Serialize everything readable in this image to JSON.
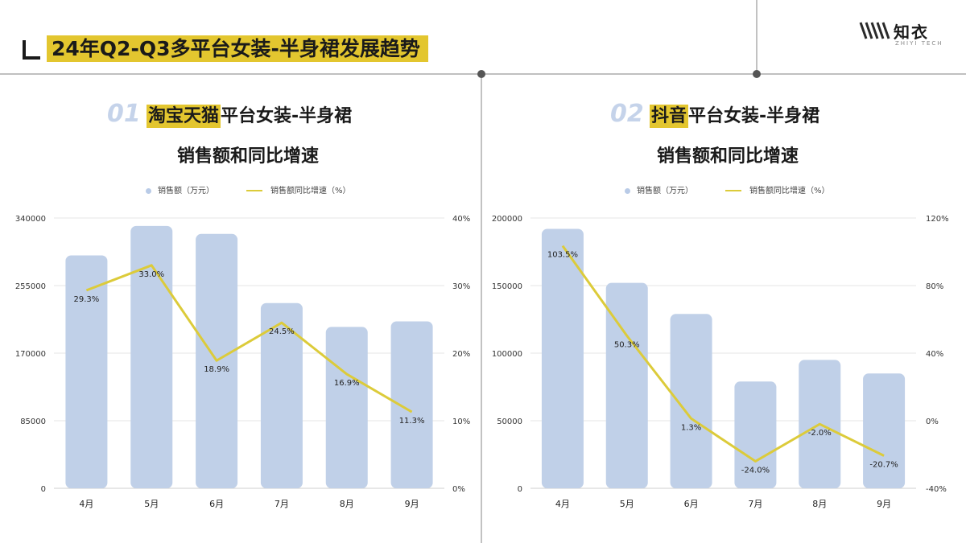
{
  "header": {
    "title": "24年Q2-Q3多平台女装-半身裙发展趋势"
  },
  "logo": {
    "text": "知衣",
    "subtext": "ZHIYI TECH"
  },
  "panels": [
    {
      "number": "01",
      "title_highlight": "淘宝天猫",
      "title_rest": "平台女装-半身裙",
      "subtitle": "销售额和同比增速"
    },
    {
      "number": "02",
      "title_highlight": "抖音",
      "title_rest": "平台女装-半身裙",
      "subtitle": "销售额和同比增速"
    }
  ],
  "colors": {
    "bar": "#c0d0e8",
    "line": "#dccb3a",
    "highlight": "#e3c62f",
    "number": "#c5d3ea"
  },
  "chart_data": [
    {
      "type": "bar",
      "categories": [
        "4月",
        "5月",
        "6月",
        "7月",
        "8月",
        "9月"
      ],
      "series": [
        {
          "name": "销售额（万元）",
          "type": "bar",
          "axis": "left",
          "values": [
            293000,
            330000,
            320000,
            233000,
            203000,
            210000
          ]
        },
        {
          "name": "销售额同比增速（%）",
          "type": "line",
          "axis": "right",
          "values": [
            29.3,
            33.0,
            18.9,
            24.5,
            16.9,
            11.3
          ],
          "labels": [
            "29.3%",
            "33.0%",
            "18.9%",
            "24.5%",
            "16.9%",
            "11.3%"
          ]
        }
      ],
      "y_left": {
        "ylim": [
          0,
          340000
        ],
        "ticks": [
          "0",
          "85000",
          "170000",
          "255000",
          "340000"
        ]
      },
      "y_right": {
        "ylim": [
          0,
          40
        ],
        "ticks": [
          "0%",
          "10%",
          "20%",
          "30%",
          "40%"
        ]
      },
      "legend": "top"
    },
    {
      "type": "bar",
      "categories": [
        "4月",
        "5月",
        "6月",
        "7月",
        "8月",
        "9月"
      ],
      "series": [
        {
          "name": "销售额（万元）",
          "type": "bar",
          "axis": "left",
          "values": [
            192000,
            152000,
            129000,
            79000,
            95000,
            85000
          ]
        },
        {
          "name": "销售额同比增速（%）",
          "type": "line",
          "axis": "right",
          "values": [
            103.5,
            50.3,
            1.3,
            -24.0,
            -2.0,
            -20.7
          ],
          "labels": [
            "103.5%",
            "50.3%",
            "1.3%",
            "-24.0%",
            "-2.0%",
            "-20.7%"
          ]
        }
      ],
      "y_left": {
        "ylim": [
          0,
          200000
        ],
        "ticks": [
          "0",
          "50000",
          "100000",
          "150000",
          "200000"
        ]
      },
      "y_right": {
        "ylim": [
          -40,
          120
        ],
        "ticks": [
          "-40%",
          "0%",
          "40%",
          "80%",
          "120%"
        ]
      },
      "legend": "top"
    }
  ]
}
